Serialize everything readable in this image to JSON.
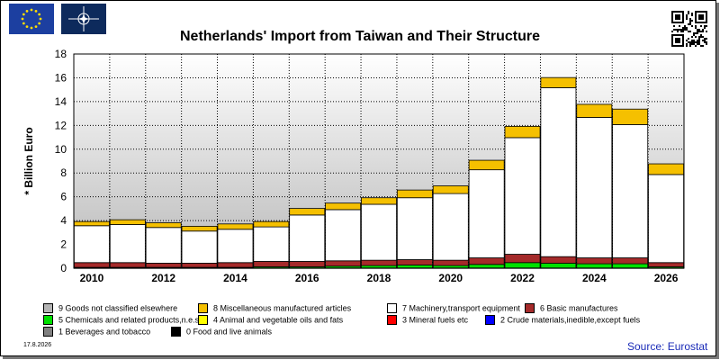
{
  "header": {
    "title": "Netherlands' Import from Taiwan and Their Structure"
  },
  "logos": {
    "eu": "eu-flag",
    "nato": "nato-flag",
    "qr": "qr-code"
  },
  "footer": {
    "date": "17.8.2026",
    "source": "Source: Eurostat"
  },
  "colors": {
    "eu_blue": "#1c3fa0",
    "nato_navy": "#0d2a5c",
    "source_text": "#1a2bb8"
  },
  "chart_data": {
    "type": "bar",
    "stacked": true,
    "title": "Netherlands' Import from Taiwan and Their Structure",
    "ylabel": "* Billion Euro",
    "ylim": [
      0,
      18
    ],
    "yticks": [
      "0",
      "2",
      "4",
      "6",
      "8",
      "10",
      "12",
      "14",
      "16",
      "18"
    ],
    "categories": [
      "2010",
      "2011",
      "2012",
      "2013",
      "2014",
      "2015",
      "2016",
      "2017",
      "2018",
      "2019",
      "2020",
      "2021",
      "2022",
      "2023",
      "2024",
      "2025",
      "2026"
    ],
    "xticklabels": [
      "2010",
      "",
      "2012",
      "",
      "2014",
      "",
      "2016",
      "",
      "2018",
      "",
      "2020",
      "",
      "2022",
      "",
      "2024",
      "",
      "2026"
    ],
    "grid": true,
    "legend_position": "bottom",
    "series": [
      {
        "name": "0 Food and live animals",
        "color": "#000000",
        "values": [
          0,
          0,
          0,
          0,
          0,
          0,
          0,
          0,
          0,
          0,
          0,
          0,
          0,
          0,
          0,
          0,
          0
        ]
      },
      {
        "name": "1 Beverages and tobacco",
        "color": "#808080",
        "values": [
          0,
          0,
          0,
          0,
          0,
          0,
          0,
          0,
          0,
          0,
          0,
          0,
          0,
          0,
          0,
          0,
          0
        ]
      },
      {
        "name": "2 Crude materials,inedible,except fuels",
        "color": "#0000ff",
        "values": [
          0.02,
          0.02,
          0.02,
          0.02,
          0.02,
          0.02,
          0.02,
          0.02,
          0.02,
          0.02,
          0.02,
          0.02,
          0.02,
          0.02,
          0.02,
          0.02,
          0.02
        ]
      },
      {
        "name": "3 Mineral fuels etc",
        "color": "#ff0000",
        "values": [
          0,
          0,
          0,
          0,
          0,
          0,
          0,
          0,
          0,
          0,
          0,
          0,
          0,
          0,
          0,
          0,
          0
        ]
      },
      {
        "name": "4 Animal and vegetable oils and fats",
        "color": "#ffff00",
        "values": [
          0,
          0,
          0,
          0,
          0,
          0,
          0,
          0,
          0,
          0,
          0,
          0,
          0,
          0,
          0,
          0,
          0
        ]
      },
      {
        "name": "5 Chemicals and related products,n.e.s.",
        "color": "#00e000",
        "values": [
          0.05,
          0.05,
          0.05,
          0.05,
          0.05,
          0.1,
          0.1,
          0.15,
          0.2,
          0.25,
          0.2,
          0.3,
          0.45,
          0.4,
          0.35,
          0.35,
          0.1
        ]
      },
      {
        "name": "6 Basic manufactures",
        "color": "#a52a2a",
        "values": [
          0.4,
          0.4,
          0.35,
          0.35,
          0.4,
          0.45,
          0.45,
          0.45,
          0.45,
          0.45,
          0.45,
          0.55,
          0.7,
          0.55,
          0.5,
          0.5,
          0.35
        ]
      },
      {
        "name": "7 Machinery,transport equipment",
        "color": "#ffffff",
        "values": [
          3.1,
          3.2,
          3.0,
          2.7,
          2.8,
          2.9,
          3.9,
          4.3,
          4.7,
          5.2,
          5.6,
          7.4,
          9.8,
          14.2,
          11.8,
          11.2,
          7.4
        ]
      },
      {
        "name": "8 Miscellaneous manufactured articles",
        "color": "#f5c000",
        "values": [
          0.35,
          0.4,
          0.4,
          0.4,
          0.45,
          0.45,
          0.55,
          0.55,
          0.55,
          0.65,
          0.65,
          0.8,
          0.95,
          0.85,
          1.1,
          1.3,
          0.9
        ]
      },
      {
        "name": "9 Goods not classified elsewhere",
        "color": "#b4b4b4",
        "values": [
          0,
          0,
          0,
          0,
          0,
          0,
          0,
          0,
          0,
          0,
          0,
          0,
          0,
          0,
          0,
          0,
          0
        ]
      }
    ]
  },
  "legend": [
    {
      "label": "9 Goods not classified elsewhere",
      "color": "#b4b4b4"
    },
    {
      "label": "8 Miscellaneous manufactured articles",
      "color": "#f5c000"
    },
    {
      "label": "7 Machinery,transport equipment",
      "color": "#ffffff"
    },
    {
      "label": "6 Basic manufactures",
      "color": "#a52a2a"
    },
    {
      "label": "5 Chemicals and related products,n.e.s.",
      "color": "#00e000"
    },
    {
      "label": "4 Animal and vegetable oils and fats",
      "color": "#ffff00"
    },
    {
      "label": "3 Mineral fuels etc",
      "color": "#ff0000"
    },
    {
      "label": "2 Crude materials,inedible,except fuels",
      "color": "#0000ff"
    },
    {
      "label": "1 Beverages and tobacco",
      "color": "#808080"
    },
    {
      "label": "0 Food and live animals",
      "color": "#000000"
    }
  ]
}
